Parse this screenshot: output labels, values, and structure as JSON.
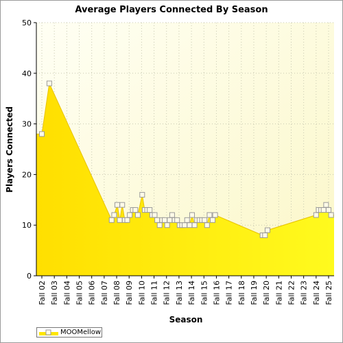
{
  "chart_data": {
    "type": "area",
    "title": "Average Players Connected By Season",
    "xlabel": "Season",
    "ylabel": "Players Connected",
    "ylim": [
      0,
      50
    ],
    "yticks": [
      0,
      10,
      20,
      30,
      40,
      50
    ],
    "grid": true,
    "legend_position": "bottom-left",
    "categories": [
      "Fall 02",
      "Fall 03",
      "Fall 04",
      "Fall 05",
      "Fall 06",
      "Fall 07",
      "Fall 08",
      "Fall 09",
      "Fall 10",
      "Fall 11",
      "Fall 12",
      "Fall 13",
      "Fall 14",
      "Fall 15",
      "Fall 16",
      "Fall 17",
      "Fall 18",
      "Fall 19",
      "Fall 20",
      "Fall 21",
      "Fall 22",
      "Fall 23",
      "Fall 24",
      "Fall 25"
    ],
    "series": [
      {
        "name": "MOOMellow",
        "color": "#ffe600",
        "points": [
          {
            "x": 0.0,
            "y": 28
          },
          {
            "x": 0.6,
            "y": 38
          },
          {
            "x": 5.6,
            "y": 11
          },
          {
            "x": 5.8,
            "y": 12
          },
          {
            "x": 6.05,
            "y": 14
          },
          {
            "x": 6.25,
            "y": 11
          },
          {
            "x": 6.45,
            "y": 14
          },
          {
            "x": 6.65,
            "y": 11
          },
          {
            "x": 6.85,
            "y": 11
          },
          {
            "x": 7.05,
            "y": 12
          },
          {
            "x": 7.3,
            "y": 13
          },
          {
            "x": 7.5,
            "y": 13
          },
          {
            "x": 7.7,
            "y": 12
          },
          {
            "x": 8.05,
            "y": 16
          },
          {
            "x": 8.25,
            "y": 13
          },
          {
            "x": 8.45,
            "y": 13
          },
          {
            "x": 8.65,
            "y": 13
          },
          {
            "x": 8.85,
            "y": 12
          },
          {
            "x": 9.05,
            "y": 12
          },
          {
            "x": 9.25,
            "y": 11
          },
          {
            "x": 9.45,
            "y": 10
          },
          {
            "x": 9.65,
            "y": 11
          },
          {
            "x": 9.85,
            "y": 11
          },
          {
            "x": 10.05,
            "y": 10
          },
          {
            "x": 10.25,
            "y": 11
          },
          {
            "x": 10.45,
            "y": 12
          },
          {
            "x": 10.65,
            "y": 11
          },
          {
            "x": 10.85,
            "y": 11
          },
          {
            "x": 11.05,
            "y": 10
          },
          {
            "x": 11.25,
            "y": 10
          },
          {
            "x": 11.45,
            "y": 10
          },
          {
            "x": 11.65,
            "y": 11
          },
          {
            "x": 11.85,
            "y": 10
          },
          {
            "x": 12.05,
            "y": 12
          },
          {
            "x": 12.25,
            "y": 10
          },
          {
            "x": 12.45,
            "y": 11
          },
          {
            "x": 12.65,
            "y": 11
          },
          {
            "x": 12.85,
            "y": 11
          },
          {
            "x": 13.05,
            "y": 11
          },
          {
            "x": 13.25,
            "y": 10
          },
          {
            "x": 13.45,
            "y": 12
          },
          {
            "x": 13.7,
            "y": 11
          },
          {
            "x": 13.9,
            "y": 12
          },
          {
            "x": 17.7,
            "y": 8
          },
          {
            "x": 17.9,
            "y": 8
          },
          {
            "x": 18.1,
            "y": 9
          },
          {
            "x": 22.0,
            "y": 12
          },
          {
            "x": 22.2,
            "y": 13
          },
          {
            "x": 22.4,
            "y": 13
          },
          {
            "x": 22.6,
            "y": 13
          },
          {
            "x": 22.8,
            "y": 14
          },
          {
            "x": 23.0,
            "y": 13
          },
          {
            "x": 23.2,
            "y": 12
          }
        ]
      }
    ]
  }
}
